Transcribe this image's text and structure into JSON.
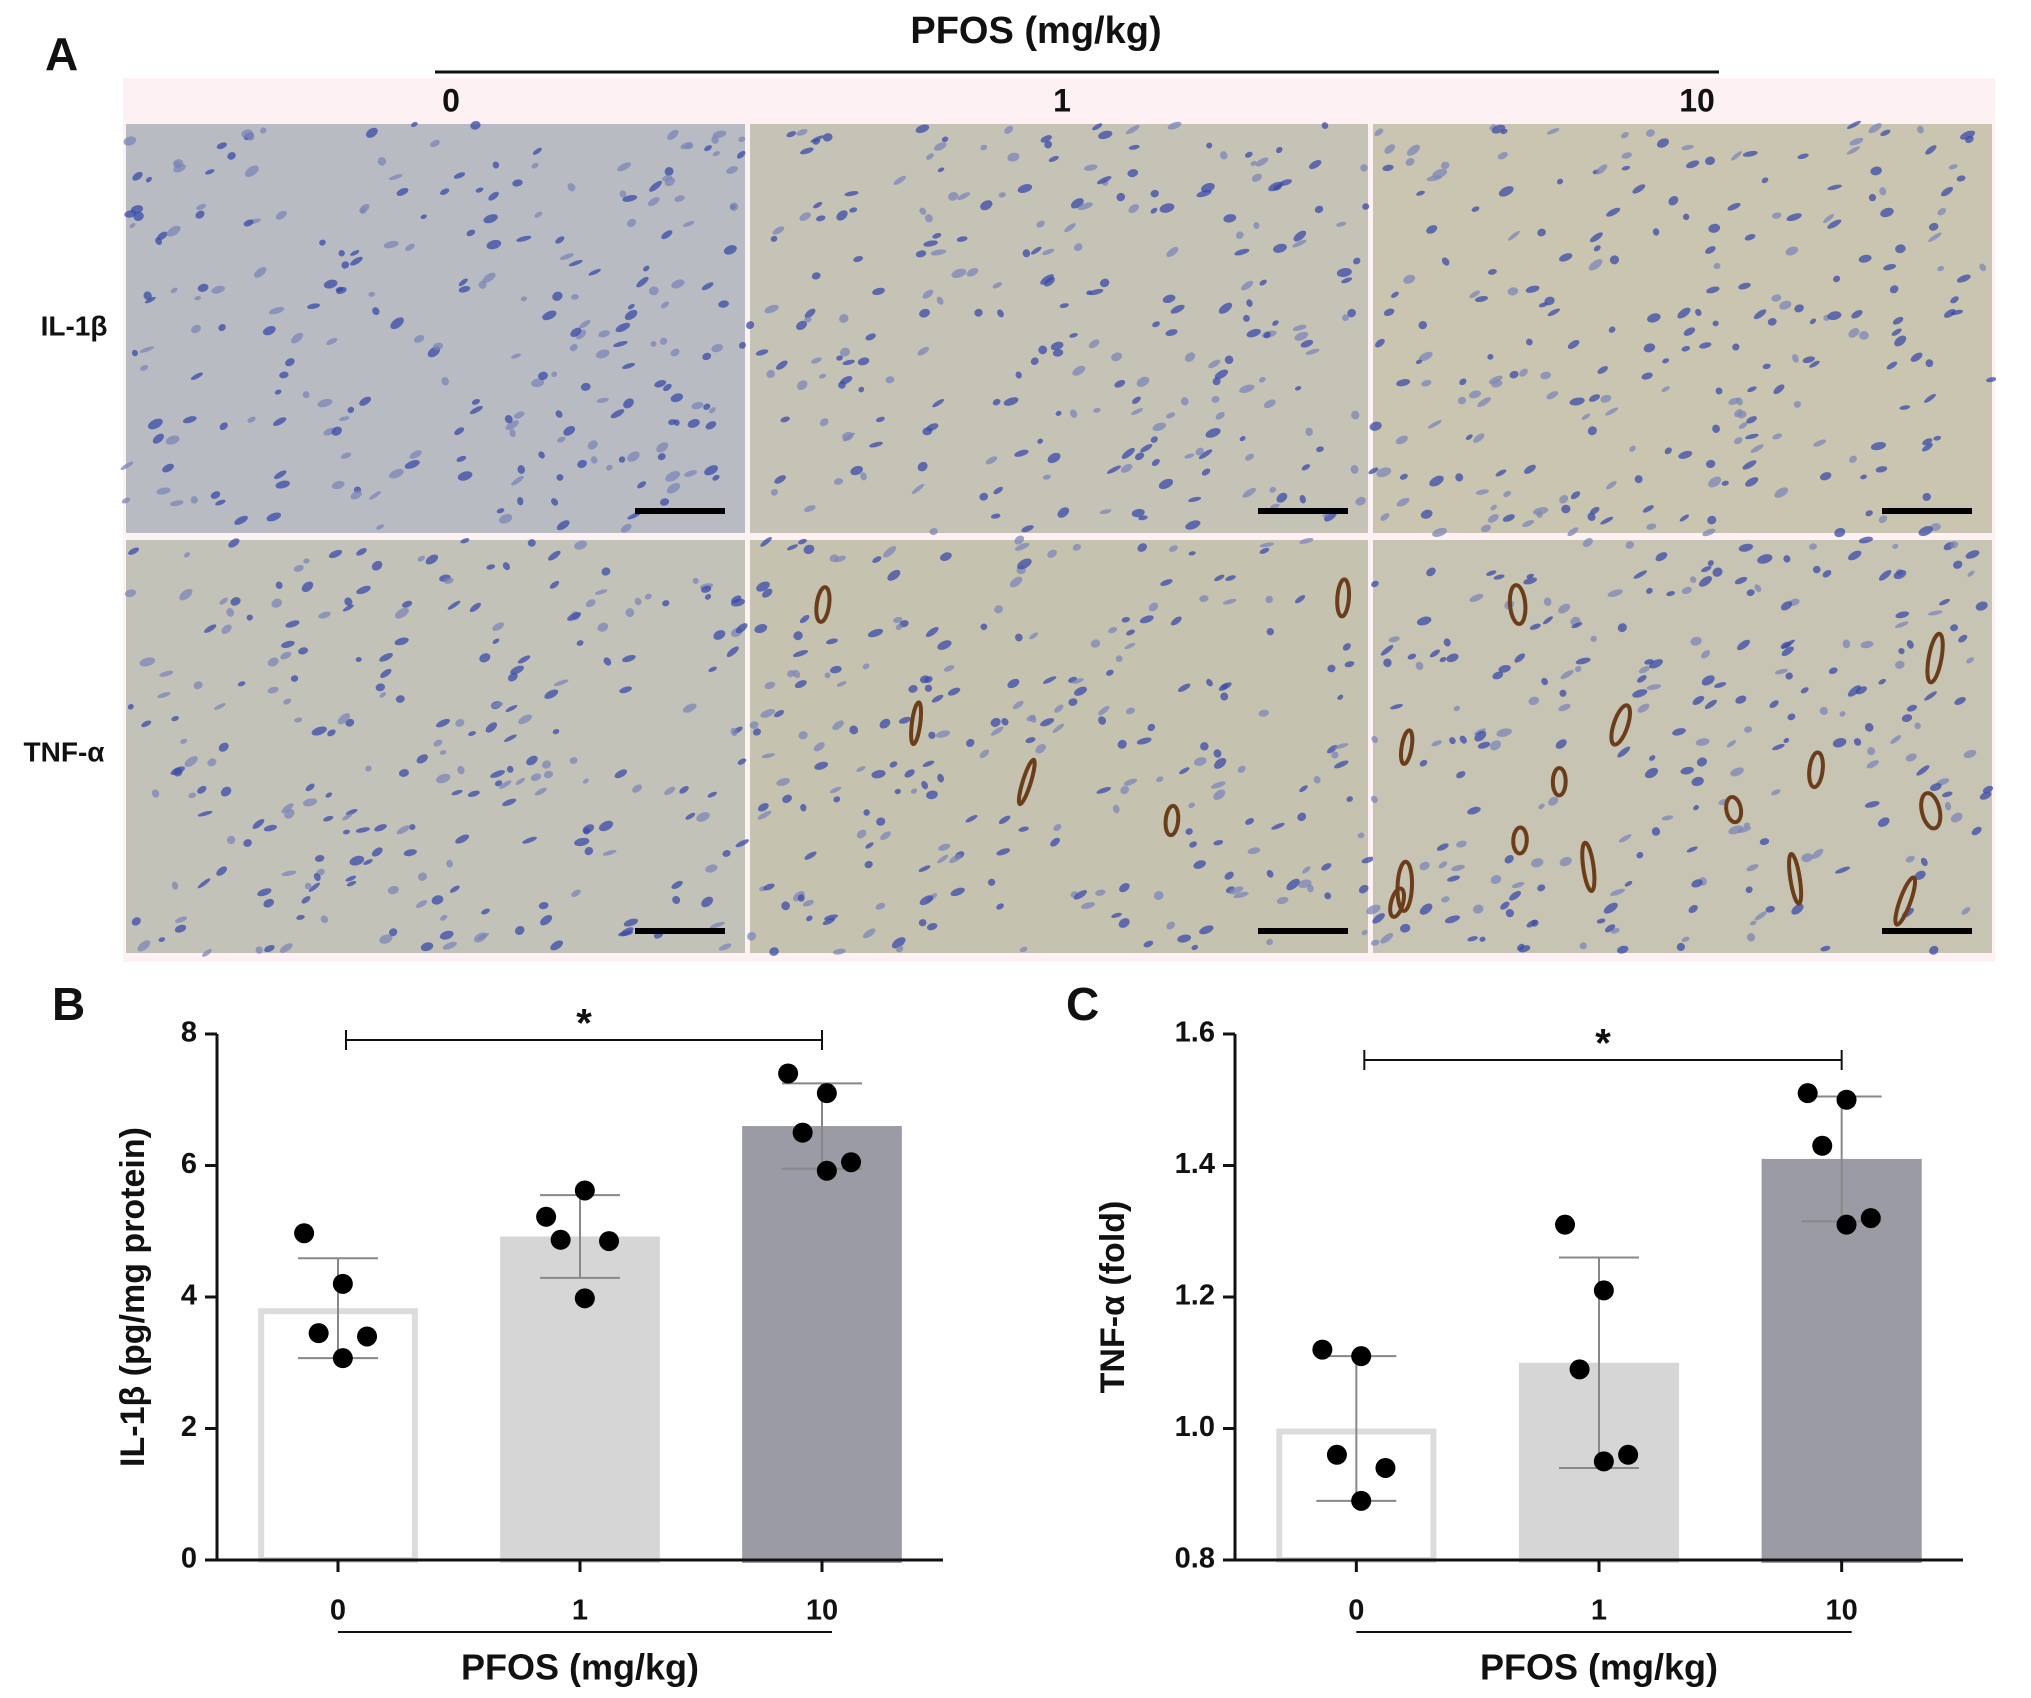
{
  "panel_a": {
    "panel_label": "A",
    "title": "PFOS (mg/kg)",
    "columns": [
      "0",
      "1",
      "10"
    ],
    "rows": [
      "IL-1β",
      "TNF-α"
    ]
  },
  "chart_data": [
    {
      "type": "bar",
      "panel_label": "B",
      "categories": [
        "0",
        "1",
        "10"
      ],
      "values": [
        3.83,
        4.92,
        6.6
      ],
      "errors": [
        0.76,
        0.63,
        0.65
      ],
      "points": [
        [
          4.97,
          4.2,
          3.45,
          3.4,
          3.07
        ],
        [
          5.22,
          5.62,
          4.87,
          4.85,
          3.98
        ],
        [
          7.4,
          7.1,
          6.5,
          6.05,
          5.92
        ]
      ],
      "colors": [
        "#ffffff",
        "#d6d6d6",
        "#9b9ba5"
      ],
      "edgecolors": [
        "#dcdcdc",
        "#d6d6d6",
        "#9b9ba5"
      ],
      "ylim": [
        0,
        8
      ],
      "yticks": [
        0,
        2,
        4,
        6,
        8
      ],
      "ylabel": "IL-1β (pg/mg protein)",
      "xlabel": "PFOS (mg/kg)",
      "significance": {
        "label": "*",
        "between": [
          "0",
          "10"
        ]
      }
    },
    {
      "type": "bar",
      "panel_label": "C",
      "categories": [
        "0",
        "1",
        "10"
      ],
      "values": [
        1.0,
        1.1,
        1.41
      ],
      "errors": [
        0.11,
        0.16,
        0.095
      ],
      "points": [
        [
          1.12,
          1.11,
          0.96,
          0.94,
          0.89
        ],
        [
          1.31,
          1.21,
          1.09,
          0.96,
          0.95
        ],
        [
          1.51,
          1.5,
          1.43,
          1.32,
          1.31
        ]
      ],
      "colors": [
        "#ffffff",
        "#d6d6d6",
        "#9b9ba5"
      ],
      "edgecolors": [
        "#dcdcdc",
        "#d6d6d6",
        "#9b9ba5"
      ],
      "ylim": [
        0.8,
        1.6
      ],
      "yticks": [
        0.8,
        {
          "value": 1,
          "label": "1.0"
        },
        1.2,
        1.4,
        1.6
      ],
      "ylabel": "TNF-α (fold)",
      "xlabel": "PFOS (mg/kg)",
      "significance": {
        "label": "*",
        "between": [
          "0",
          "10"
        ]
      }
    }
  ]
}
